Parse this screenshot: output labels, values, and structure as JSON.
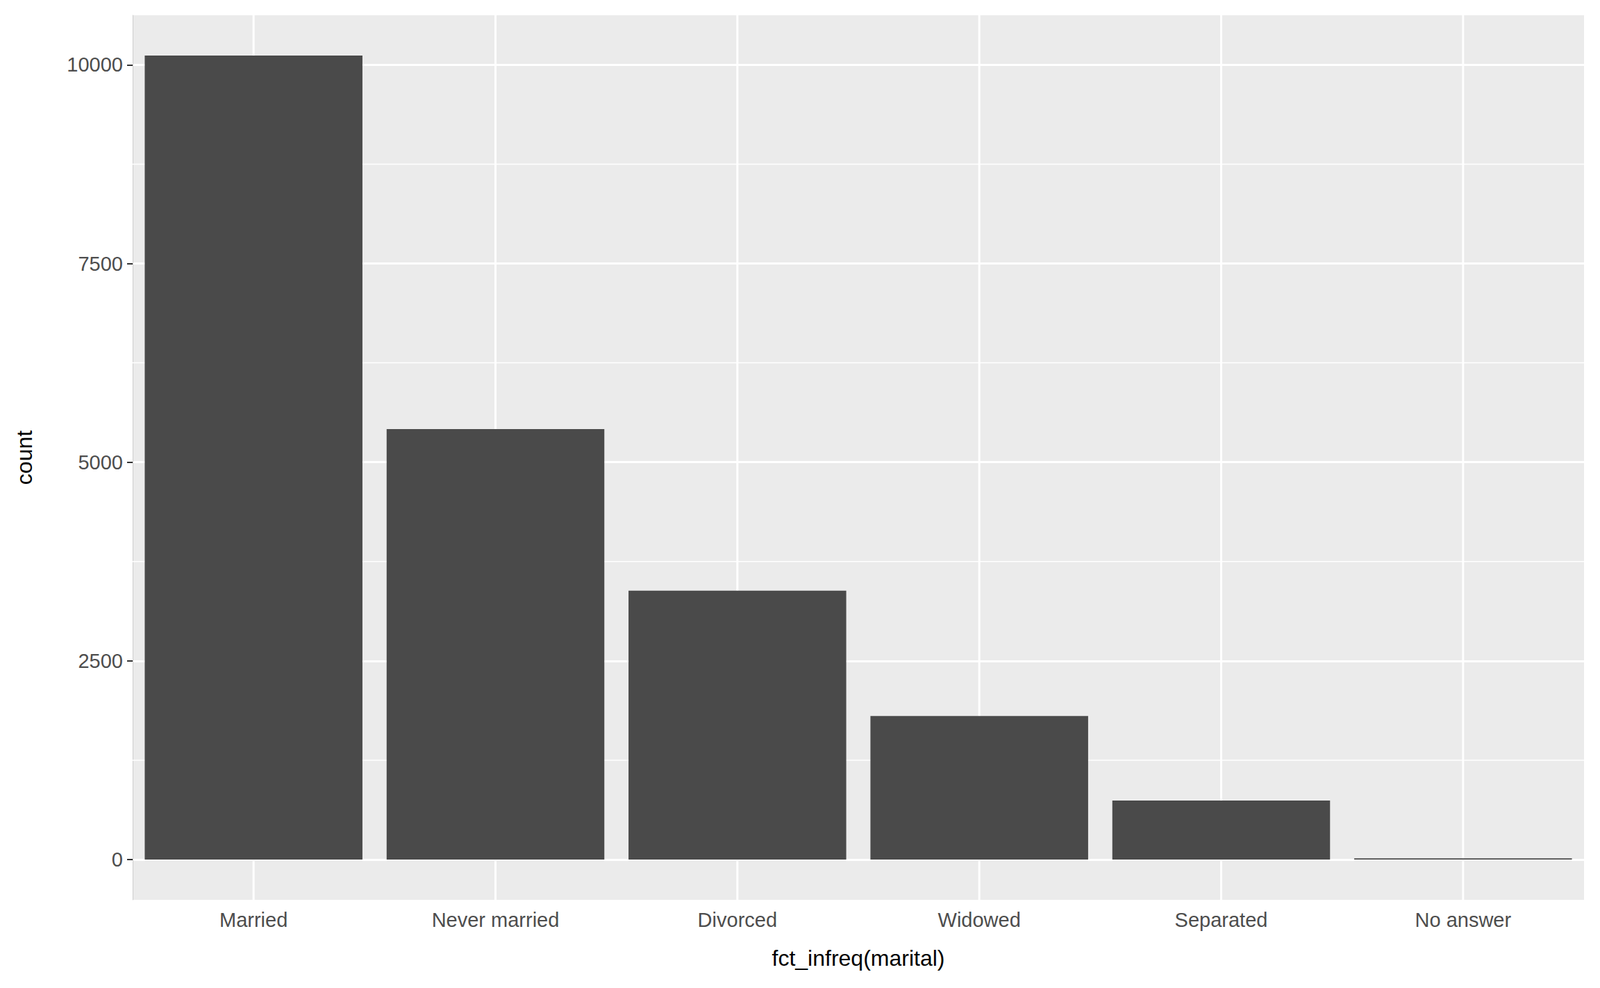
{
  "chart_data": {
    "type": "bar",
    "x_label": "fct_infreq(marital)",
    "y_label": "count",
    "categories": [
      "Married",
      "Never married",
      "Divorced",
      "Widowed",
      "Separated",
      "No answer"
    ],
    "values": [
      10117,
      5416,
      3383,
      1807,
      743,
      17
    ],
    "color": "#4a4a4a",
    "ylim": [
      -505.85,
      10622.85
    ],
    "yticks": [
      0,
      2500,
      5000,
      7500,
      10000
    ],
    "grid": true
  }
}
